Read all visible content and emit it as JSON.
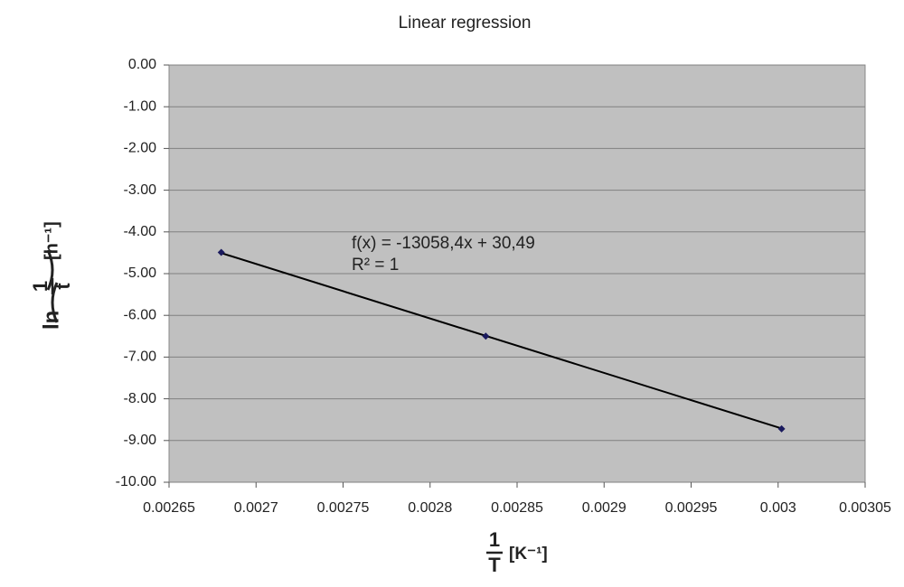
{
  "chart_data": {
    "type": "scatter",
    "title": "Linear regression",
    "xlabel": {
      "numerator": "1",
      "denominator": "T",
      "unit": "[K⁻¹]"
    },
    "ylabel": {
      "function": "ln",
      "numerator": "1",
      "denominator": "t",
      "unit": "[h⁻¹]"
    },
    "x": [
      0.00268,
      0.002832,
      0.003002
    ],
    "series": [
      {
        "color": "#1a1a5e",
        "values": [
          -4.49,
          -6.5,
          -8.72
        ]
      }
    ],
    "trendline": {
      "slope": -13058.4,
      "intercept": 30.49,
      "label": "f(x) = -13058,4x + 30,49",
      "r2_label": "R² = 1",
      "color": "#000000"
    },
    "xlim": [
      0.00265,
      0.00305
    ],
    "xticks": [
      0.00265,
      0.0027,
      0.00275,
      0.0028,
      0.00285,
      0.0029,
      0.00295,
      0.003,
      0.00305
    ],
    "ylim": [
      -10,
      0
    ],
    "yticks": [
      {
        "value": 0,
        "label": "0.00"
      },
      {
        "value": -1,
        "label": "-1.00"
      },
      {
        "value": -2,
        "label": "-2.00"
      },
      {
        "value": -3,
        "label": "-3.00"
      },
      {
        "value": -4,
        "label": "-4.00"
      },
      {
        "value": -5,
        "label": "-5.00"
      },
      {
        "value": -6,
        "label": "-6.00"
      },
      {
        "value": -7,
        "label": "-7.00"
      },
      {
        "value": -8,
        "label": "-8.00"
      },
      {
        "value": -9,
        "label": "-9.00"
      },
      {
        "value": -10,
        "label": "-10.00"
      }
    ],
    "grid": true
  }
}
